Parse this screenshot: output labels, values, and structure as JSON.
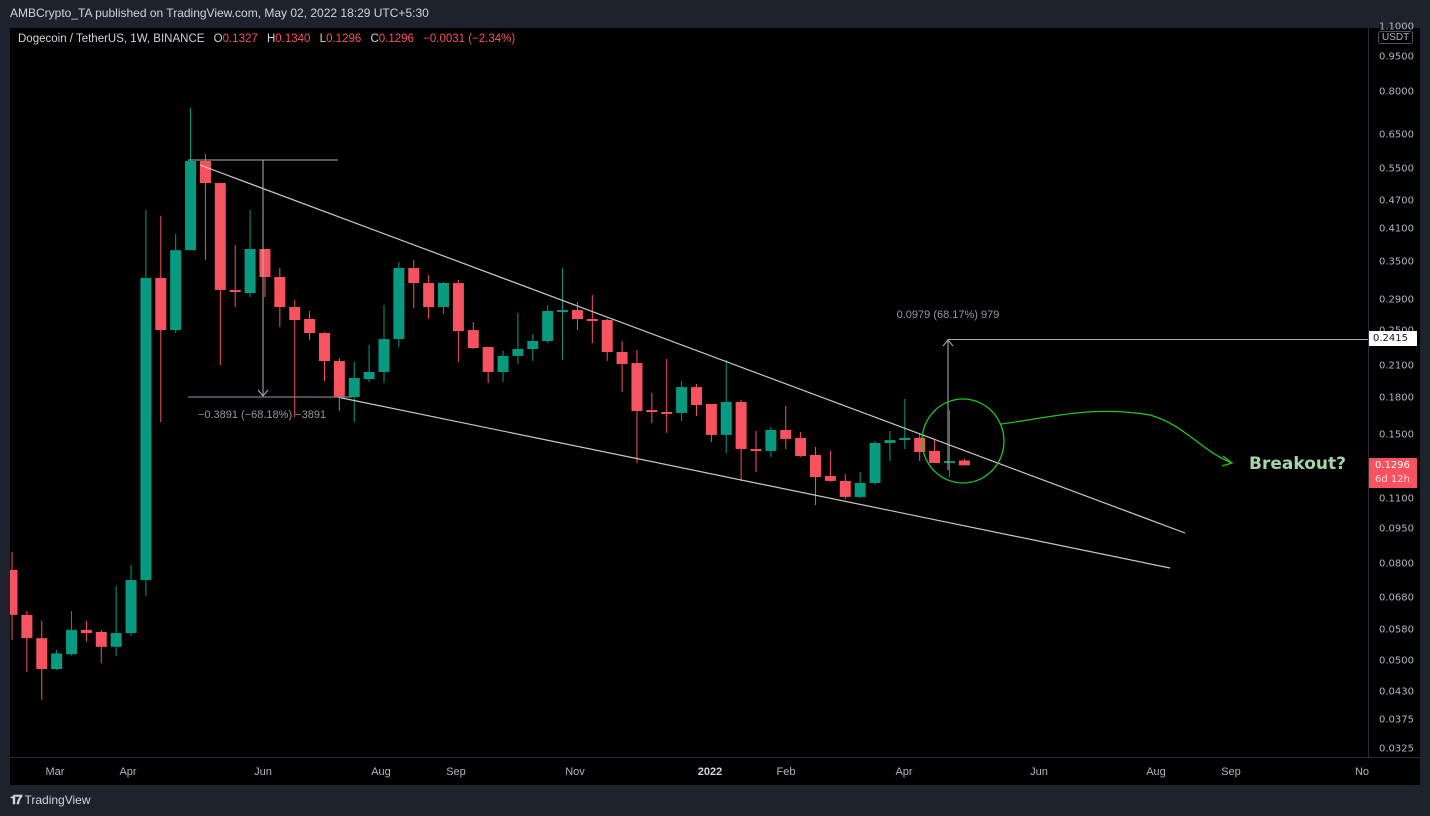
{
  "publish_line": "AMBCrypto_TA published on TradingView.com, May 02, 2022 18:29 UTC+5:30",
  "legend": {
    "symbol": "Dogecoin / TetherUS, 1W, BINANCE",
    "o_label": "O",
    "o": "0.1327",
    "h_label": "H",
    "h": "0.1340",
    "l_label": "L",
    "l": "0.1296",
    "c_label": "C",
    "c": "0.1296",
    "change": "−0.0031 (−2.34%)"
  },
  "price_axis": {
    "currency": "USDT",
    "ticks": [
      "1.1000",
      "0.9500",
      "0.8000",
      "0.6500",
      "0.5500",
      "0.4700",
      "0.4100",
      "0.3500",
      "0.2900",
      "0.2500",
      "0.2100",
      "0.1800",
      "0.1500",
      "0.1100",
      "0.0950",
      "0.0800",
      "0.0680",
      "0.0580",
      "0.0500",
      "0.0430",
      "0.0375",
      "0.0325"
    ],
    "target_label": "0.2415",
    "current_price": "0.1296",
    "countdown": "6d 12h"
  },
  "time_axis": {
    "labels": [
      "Mar",
      "Apr",
      "Jun",
      "Aug",
      "Sep",
      "Nov",
      "2022",
      "Feb",
      "Apr",
      "Jun",
      "Aug",
      "Sep",
      "No"
    ]
  },
  "annotations": {
    "drop_measure": "−0.3891 (−68.18%) −3891",
    "rise_measure": "0.0979 (68.17%) 979",
    "breakout": "Breakout?"
  },
  "footer": {
    "brand": "TradingView",
    "logo_glyph": "17"
  },
  "colors": {
    "up": "#089981",
    "down": "#f7525f",
    "annotation": "#22c322",
    "breakout_text": "#a5d6a7",
    "lines": "#c8c8c8"
  },
  "chart_data": {
    "type": "candlestick",
    "title": "Dogecoin / TetherUS, 1W, BINANCE",
    "interval": "1W",
    "x_start": "2021-02-01",
    "scale": "log",
    "ylim": [
      0.0325,
      1.1
    ],
    "ohlc": [
      [
        0.0778,
        0.0849,
        0.0553,
        0.0625
      ],
      [
        0.0625,
        0.0637,
        0.0473,
        0.0558
      ],
      [
        0.0558,
        0.0607,
        0.0413,
        0.048
      ],
      [
        0.048,
        0.0527,
        0.0478,
        0.0518
      ],
      [
        0.0516,
        0.0637,
        0.0513,
        0.0581
      ],
      [
        0.0581,
        0.0607,
        0.0548,
        0.0572
      ],
      [
        0.0575,
        0.0581,
        0.0494,
        0.0535
      ],
      [
        0.0535,
        0.072,
        0.0511,
        0.0572
      ],
      [
        0.0572,
        0.0797,
        0.0564,
        0.0741
      ],
      [
        0.0741,
        0.45,
        0.0686,
        0.323
      ],
      [
        0.323,
        0.437,
        0.1601,
        0.2506
      ],
      [
        0.2506,
        0.4003,
        0.247,
        0.37
      ],
      [
        0.37,
        0.74,
        0.37,
        0.5715
      ],
      [
        0.5715,
        0.5913,
        0.3527,
        0.5133
      ],
      [
        0.5133,
        0.5133,
        0.2114,
        0.3047
      ],
      [
        0.3047,
        0.3794,
        0.2804,
        0.3017
      ],
      [
        0.3002,
        0.45,
        0.2944,
        0.3721
      ],
      [
        0.3721,
        0.3721,
        0.2944,
        0.3246
      ],
      [
        0.3246,
        0.3391,
        0.2543,
        0.2804
      ],
      [
        0.2804,
        0.2902,
        0.164,
        0.2632
      ],
      [
        0.2645,
        0.275,
        0.2387,
        0.247
      ],
      [
        0.247,
        0.2482,
        0.1955,
        0.2155
      ],
      [
        0.2155,
        0.2187,
        0.1689,
        0.1808
      ],
      [
        0.1808,
        0.2145,
        0.1601,
        0.1984
      ],
      [
        0.1974,
        0.233,
        0.1945,
        0.2043
      ],
      [
        0.2043,
        0.2831,
        0.1936,
        0.2399
      ],
      [
        0.2399,
        0.3492,
        0.2307,
        0.3391
      ],
      [
        0.3391,
        0.3527,
        0.279,
        0.3152
      ],
      [
        0.3152,
        0.3278,
        0.2645,
        0.2804
      ],
      [
        0.2804,
        0.3168,
        0.271,
        0.3152
      ],
      [
        0.3152,
        0.3199,
        0.2145,
        0.2494
      ],
      [
        0.2506,
        0.2606,
        0.2285,
        0.2296
      ],
      [
        0.2307,
        0.2307,
        0.1936,
        0.2043
      ],
      [
        0.2043,
        0.2263,
        0.1945,
        0.2209
      ],
      [
        0.2209,
        0.2724,
        0.2124,
        0.2285
      ],
      [
        0.2285,
        0.2458,
        0.2155,
        0.2376
      ],
      [
        0.2376,
        0.2831,
        0.2353,
        0.275
      ],
      [
        0.275,
        0.3391,
        0.2166,
        0.2763
      ],
      [
        0.2763,
        0.2873,
        0.2506,
        0.2645
      ],
      [
        0.2645,
        0.2973,
        0.2353,
        0.2632
      ],
      [
        0.2632,
        0.2645,
        0.2155,
        0.2252
      ],
      [
        0.2252,
        0.2376,
        0.1853,
        0.2124
      ],
      [
        0.2134,
        0.2274,
        0.1311,
        0.1689
      ],
      [
        0.1697,
        0.1844,
        0.1593,
        0.1681
      ],
      [
        0.1681,
        0.2177,
        0.1518,
        0.1673
      ],
      [
        0.1673,
        0.1955,
        0.1609,
        0.1898
      ],
      [
        0.1898,
        0.1927,
        0.1649,
        0.1739
      ],
      [
        0.1748,
        0.1748,
        0.1452,
        0.1503
      ],
      [
        0.1503,
        0.2166,
        0.1376,
        0.1765
      ],
      [
        0.1765,
        0.1782,
        0.12,
        0.1403
      ],
      [
        0.1403,
        0.1532,
        0.1254,
        0.139
      ],
      [
        0.139,
        0.1562,
        0.135,
        0.154
      ],
      [
        0.154,
        0.1731,
        0.1403,
        0.1474
      ],
      [
        0.1481,
        0.1525,
        0.135,
        0.1356
      ],
      [
        0.1363,
        0.1417,
        0.1068,
        0.1224
      ],
      [
        0.123,
        0.139,
        0.1195,
        0.1201
      ],
      [
        0.1201,
        0.1242,
        0.11,
        0.1111
      ],
      [
        0.1111,
        0.1254,
        0.1105,
        0.1189
      ],
      [
        0.1189,
        0.1459,
        0.1178,
        0.1445
      ],
      [
        0.1445,
        0.1532,
        0.1323,
        0.1466
      ],
      [
        0.1466,
        0.1791,
        0.1403,
        0.1481
      ],
      [
        0.1481,
        0.151,
        0.1323,
        0.1383
      ],
      [
        0.139,
        0.1466,
        0.1311,
        0.1311
      ],
      [
        0.1317,
        0.1697,
        0.1224,
        0.1323
      ],
      [
        0.1327,
        0.134,
        0.1296,
        0.1296
      ]
    ]
  }
}
